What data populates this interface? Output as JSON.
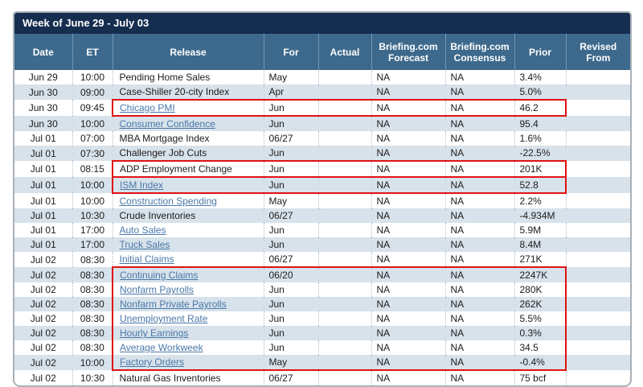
{
  "window": {
    "title": "Week of June 29 - July 03"
  },
  "colors": {
    "title_bar_bg": "#152d4f",
    "header_bg": "#3d698c",
    "stripe_row_bg": "#d7e2eb",
    "link_text": "#4a78a8",
    "highlight_box": "#e01212",
    "outer_border": "#a9b0b6"
  },
  "table": {
    "columns": [
      {
        "key": "date",
        "label": "Date"
      },
      {
        "key": "et",
        "label": "ET"
      },
      {
        "key": "release",
        "label": "Release"
      },
      {
        "key": "for",
        "label": "For"
      },
      {
        "key": "actual",
        "label": "Actual"
      },
      {
        "key": "forecast",
        "label": "Briefing.com Forecast"
      },
      {
        "key": "consensus",
        "label": "Briefing.com Consensus"
      },
      {
        "key": "prior",
        "label": "Prior"
      },
      {
        "key": "revised",
        "label": "Revised From"
      }
    ],
    "rows": [
      {
        "date": "Jun 29",
        "et": "10:00",
        "release": "Pending Home Sales",
        "link": false,
        "for": "May",
        "actual": "",
        "forecast": "NA",
        "consensus": "NA",
        "prior": "3.4%",
        "revised": "",
        "highlight": ""
      },
      {
        "date": "Jun 30",
        "et": "09:00",
        "release": "Case-Shiller 20-city Index",
        "link": false,
        "for": "Apr",
        "actual": "",
        "forecast": "NA",
        "consensus": "NA",
        "prior": "5.0%",
        "revised": "",
        "highlight": ""
      },
      {
        "date": "Jun 30",
        "et": "09:45",
        "release": "Chicago PMI",
        "link": true,
        "for": "Jun",
        "actual": "",
        "forecast": "NA",
        "consensus": "NA",
        "prior": "46.2",
        "revised": "",
        "highlight": "single"
      },
      {
        "date": "Jun 30",
        "et": "10:00",
        "release": "Consumer Confidence",
        "link": true,
        "for": "Jun",
        "actual": "",
        "forecast": "NA",
        "consensus": "NA",
        "prior": "95.4",
        "revised": "",
        "highlight": ""
      },
      {
        "date": "Jul 01",
        "et": "07:00",
        "release": "MBA Mortgage Index",
        "link": false,
        "for": "06/27",
        "actual": "",
        "forecast": "NA",
        "consensus": "NA",
        "prior": "1.6%",
        "revised": "",
        "highlight": ""
      },
      {
        "date": "Jul 01",
        "et": "07:30",
        "release": "Challenger Job Cuts",
        "link": false,
        "for": "Jun",
        "actual": "",
        "forecast": "NA",
        "consensus": "NA",
        "prior": "-22.5%",
        "revised": "",
        "highlight": ""
      },
      {
        "date": "Jul 01",
        "et": "08:15",
        "release": "ADP Employment Change",
        "link": false,
        "for": "Jun",
        "actual": "",
        "forecast": "NA",
        "consensus": "NA",
        "prior": "201K",
        "revised": "",
        "highlight": "single"
      },
      {
        "date": "Jul 01",
        "et": "10:00",
        "release": "ISM Index",
        "link": true,
        "for": "Jun",
        "actual": "",
        "forecast": "NA",
        "consensus": "NA",
        "prior": "52.8",
        "revised": "",
        "highlight": "single"
      },
      {
        "date": "Jul 01",
        "et": "10:00",
        "release": "Construction Spending",
        "link": true,
        "for": "May",
        "actual": "",
        "forecast": "NA",
        "consensus": "NA",
        "prior": "2.2%",
        "revised": "",
        "highlight": ""
      },
      {
        "date": "Jul 01",
        "et": "10:30",
        "release": "Crude Inventories",
        "link": false,
        "for": "06/27",
        "actual": "",
        "forecast": "NA",
        "consensus": "NA",
        "prior": "-4.934M",
        "revised": "",
        "highlight": ""
      },
      {
        "date": "Jul 01",
        "et": "17:00",
        "release": "Auto Sales",
        "link": true,
        "for": "Jun",
        "actual": "",
        "forecast": "NA",
        "consensus": "NA",
        "prior": "5.9M",
        "revised": "",
        "highlight": ""
      },
      {
        "date": "Jul 01",
        "et": "17:00",
        "release": "Truck Sales",
        "link": true,
        "for": "Jun",
        "actual": "",
        "forecast": "NA",
        "consensus": "NA",
        "prior": "8.4M",
        "revised": "",
        "highlight": ""
      },
      {
        "date": "Jul 02",
        "et": "08:30",
        "release": "Initial Claims",
        "link": true,
        "for": "06/27",
        "actual": "",
        "forecast": "NA",
        "consensus": "NA",
        "prior": "271K",
        "revised": "",
        "highlight": ""
      },
      {
        "date": "Jul 02",
        "et": "08:30",
        "release": "Continuing Claims",
        "link": true,
        "for": "06/20",
        "actual": "",
        "forecast": "NA",
        "consensus": "NA",
        "prior": "2247K",
        "revised": "",
        "highlight": "top"
      },
      {
        "date": "Jul 02",
        "et": "08:30",
        "release": "Nonfarm Payrolls",
        "link": true,
        "for": "Jun",
        "actual": "",
        "forecast": "NA",
        "consensus": "NA",
        "prior": "280K",
        "revised": "",
        "highlight": "mid"
      },
      {
        "date": "Jul 02",
        "et": "08:30",
        "release": "Nonfarm Private Payrolls",
        "link": true,
        "for": "Jun",
        "actual": "",
        "forecast": "NA",
        "consensus": "NA",
        "prior": "262K",
        "revised": "",
        "highlight": "mid"
      },
      {
        "date": "Jul 02",
        "et": "08:30",
        "release": "Unemployment Rate",
        "link": true,
        "for": "Jun",
        "actual": "",
        "forecast": "NA",
        "consensus": "NA",
        "prior": "5.5%",
        "revised": "",
        "highlight": "mid"
      },
      {
        "date": "Jul 02",
        "et": "08:30",
        "release": "Hourly Earnings",
        "link": true,
        "for": "Jun",
        "actual": "",
        "forecast": "NA",
        "consensus": "NA",
        "prior": "0.3%",
        "revised": "",
        "highlight": "mid"
      },
      {
        "date": "Jul 02",
        "et": "08:30",
        "release": "Average Workweek",
        "link": true,
        "for": "Jun",
        "actual": "",
        "forecast": "NA",
        "consensus": "NA",
        "prior": "34.5",
        "revised": "",
        "highlight": "mid"
      },
      {
        "date": "Jul 02",
        "et": "10:00",
        "release": "Factory Orders",
        "link": true,
        "for": "May",
        "actual": "",
        "forecast": "NA",
        "consensus": "NA",
        "prior": "-0.4%",
        "revised": "",
        "highlight": "bottom"
      },
      {
        "date": "Jul 02",
        "et": "10:30",
        "release": "Natural Gas Inventories",
        "link": false,
        "for": "06/27",
        "actual": "",
        "forecast": "NA",
        "consensus": "NA",
        "prior": "75 bcf",
        "revised": "",
        "highlight": ""
      }
    ]
  }
}
